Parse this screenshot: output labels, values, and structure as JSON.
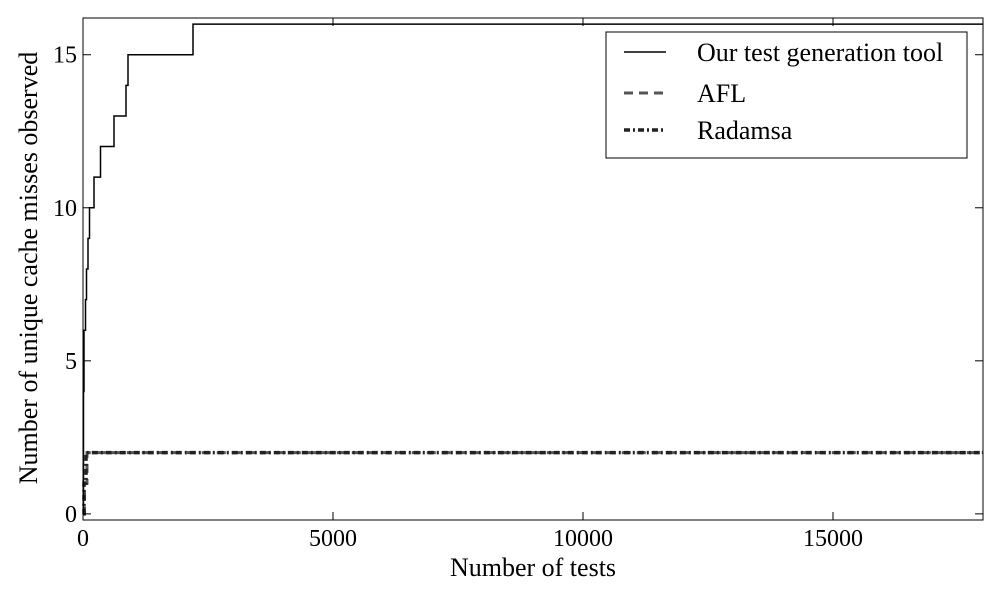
{
  "chart_data": {
    "type": "line",
    "title": "",
    "xlabel": "Number of tests",
    "ylabel": "Number of unique cache misses observed",
    "xlim": [
      0,
      18000
    ],
    "ylim": [
      -0.2,
      16.2
    ],
    "x_ticks": [
      0,
      5000,
      10000,
      15000
    ],
    "x_tick_labels": [
      "0",
      "5000",
      "10000",
      "15000"
    ],
    "y_ticks": [
      0,
      5,
      10,
      15
    ],
    "y_tick_labels": [
      "0",
      "5",
      "10",
      "15"
    ],
    "grid": false,
    "legend_position": "top-right",
    "series": [
      {
        "name": "Our test generation tool",
        "style": "solid",
        "color": "#000000",
        "x": [
          0,
          10,
          20,
          50,
          70,
          100,
          130,
          180,
          220,
          300,
          350,
          620,
          860,
          900,
          2200,
          18000
        ],
        "y": [
          0,
          4,
          6,
          7,
          8,
          9,
          10,
          10,
          11,
          11,
          12,
          13,
          14,
          15,
          16,
          16
        ]
      },
      {
        "name": "AFL",
        "style": "dashed",
        "color": "#555555",
        "x": [
          0,
          30,
          80,
          18000
        ],
        "y": [
          0,
          1,
          2,
          2
        ]
      },
      {
        "name": "Radamsa",
        "style": "dash-dot",
        "color": "#222222",
        "x": [
          0,
          20,
          60,
          18000
        ],
        "y": [
          0,
          1,
          2,
          2
        ]
      }
    ]
  }
}
